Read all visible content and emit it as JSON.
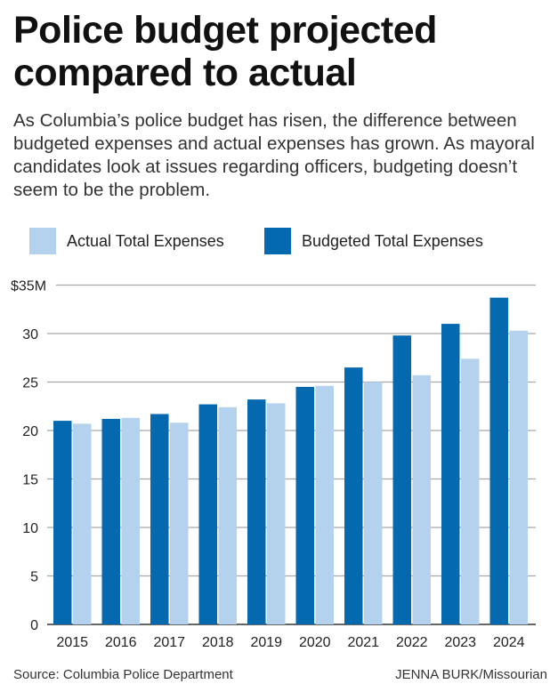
{
  "title": "Police budget projected compared to actual",
  "subtitle": "As Columbia’s police budget has risen, the difference between budgeted expenses and actual expenses has grown. As mayoral candidates look at issues regarding officers, budgeting doesn’t seem to be the problem.",
  "source_label": "Source:",
  "source": "Columbia Police Department",
  "credit_name": "JENNA BURK",
  "credit_org": "/Missourian",
  "colors": {
    "budgeted": "#0569b0",
    "actual": "#b4d2ee",
    "grid": "#a8a8a8"
  },
  "chart_data": {
    "type": "bar",
    "categories": [
      "2015",
      "2016",
      "2017",
      "2018",
      "2019",
      "2020",
      "2021",
      "2022",
      "2023",
      "2024"
    ],
    "series": [
      {
        "name": "Budgeted Total Expenses",
        "values": [
          21.0,
          21.2,
          21.7,
          22.7,
          23.2,
          24.5,
          26.5,
          29.8,
          31.0,
          33.7
        ]
      },
      {
        "name": "Actual Total Expenses",
        "values": [
          20.7,
          21.3,
          20.8,
          22.4,
          22.8,
          24.6,
          25.0,
          25.7,
          27.4,
          30.3
        ]
      }
    ],
    "legend_order": [
      "Actual Total Expenses",
      "Budgeted Total Expenses"
    ],
    "yticks": [
      "0",
      "5",
      "10",
      "15",
      "20",
      "25",
      "30",
      "$35M"
    ],
    "ylim": [
      0,
      35
    ],
    "grid": true,
    "legend_placement": "top"
  }
}
